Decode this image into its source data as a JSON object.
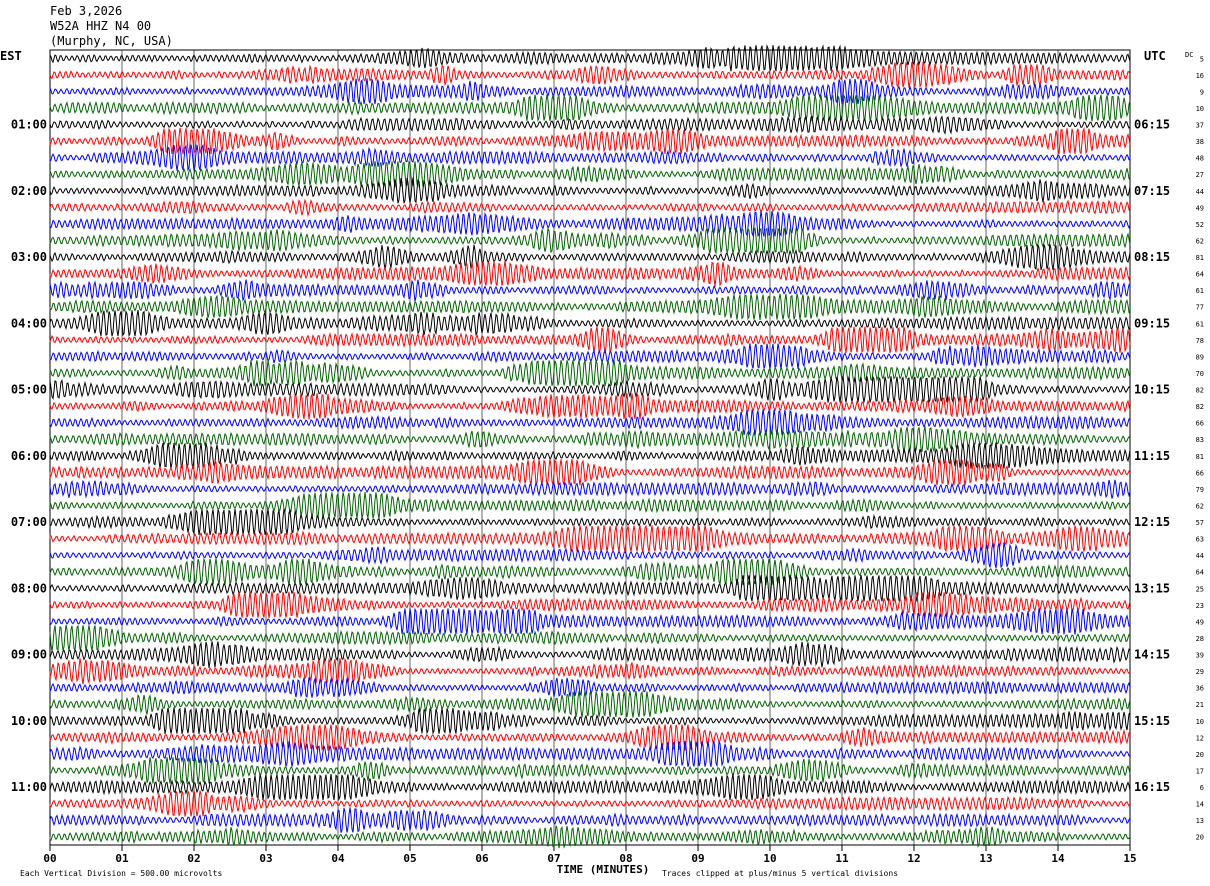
{
  "header": {
    "date": "Feb 3,2026",
    "station": "W52A HHZ N4 00",
    "location": "(Murphy, NC, USA)"
  },
  "left_zone_label": "EST",
  "right_zone_label": "UTC",
  "dc_label": "DC",
  "footer": {
    "scale_note": "Each Vertical Division =  500.00 microvolts",
    "xlabel": "TIME (MINUTES)",
    "clip_note": "Traces clipped at plus/minus 5 vertical divisions"
  },
  "chart_data": {
    "type": "line",
    "title": "Feb 3,2026 W52A HHZ N4 00 (Murphy, NC, USA)",
    "xlabel": "TIME (MINUTES)",
    "xlim": [
      0,
      15
    ],
    "x_ticks": [
      "00",
      "01",
      "02",
      "03",
      "04",
      "05",
      "06",
      "07",
      "08",
      "09",
      "10",
      "11",
      "12",
      "13",
      "14",
      "15"
    ],
    "row_count": 48,
    "row_minutes": 15,
    "row_colors": [
      "#000000",
      "#ff0000",
      "#0000ff",
      "#006400"
    ],
    "left_time_labels": [
      "01:00",
      "02:00",
      "03:00",
      "04:00",
      "05:00",
      "06:00",
      "07:00",
      "08:00",
      "09:00",
      "10:00",
      "11:00"
    ],
    "right_time_labels": [
      "06:15",
      "07:15",
      "08:15",
      "09:15",
      "10:15",
      "11:15",
      "12:15",
      "13:15",
      "14:15",
      "15:15",
      "16:15"
    ],
    "dc_offsets": [
      5,
      16,
      9,
      10,
      37,
      38,
      48,
      27,
      44,
      49,
      52,
      62,
      81,
      64,
      61,
      77,
      61,
      78,
      89,
      70,
      82,
      82,
      66,
      83,
      81,
      66,
      79,
      62,
      57,
      63,
      44,
      64,
      25,
      23,
      49,
      28,
      39,
      29,
      36,
      21,
      10,
      12,
      20,
      17,
      6,
      14,
      13,
      20
    ],
    "scale_microvolts_per_division": 500.0,
    "clip_divisions": 5
  }
}
